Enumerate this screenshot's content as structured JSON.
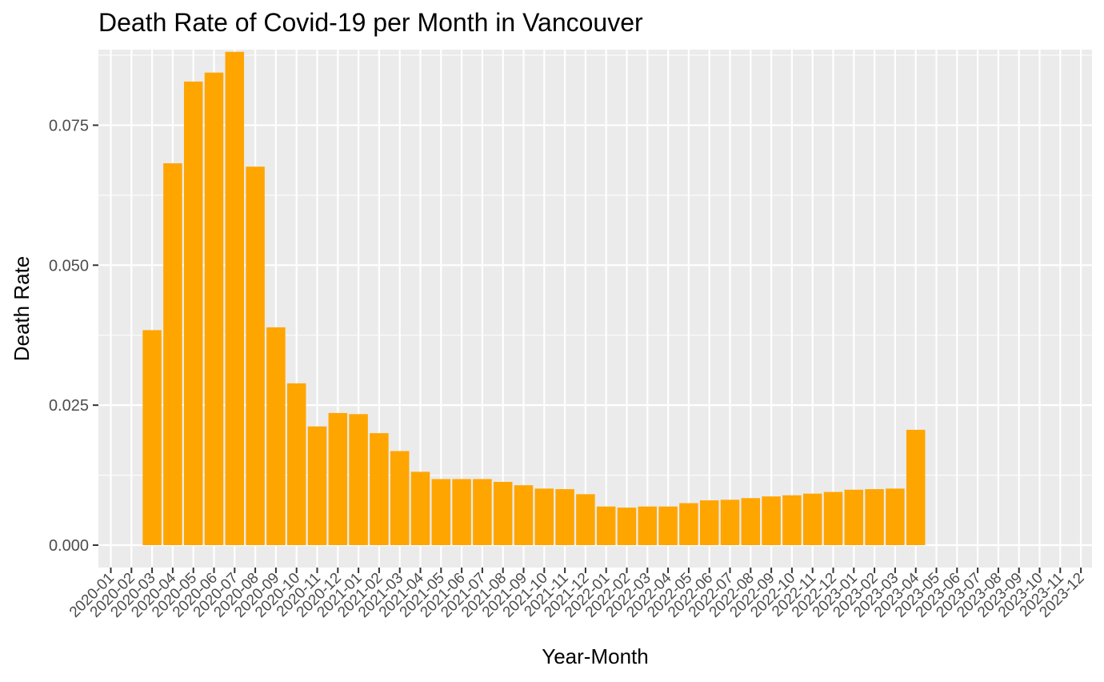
{
  "chart_data": {
    "type": "bar",
    "title": "Death Rate of Covid-19 per Month in Vancouver",
    "xlabel": "Year-Month",
    "ylabel": "Death Rate",
    "ylim": [
      -0.004,
      0.0885
    ],
    "yticks": [
      0.0,
      0.025,
      0.05,
      0.075
    ],
    "ytick_labels": [
      "0.000",
      "0.025",
      "0.050",
      "0.075"
    ],
    "grid": true,
    "bar_color": "#FFA500",
    "panel_color": "#EBEBEB",
    "grid_color": "#FFFFFF",
    "categories": [
      "2020-01",
      "2020-02",
      "2020-03",
      "2020-04",
      "2020-05",
      "2020-06",
      "2020-07",
      "2020-08",
      "2020-09",
      "2020-10",
      "2020-11",
      "2020-12",
      "2021-01",
      "2021-02",
      "2021-03",
      "2021-04",
      "2021-05",
      "2021-06",
      "2021-07",
      "2021-08",
      "2021-09",
      "2021-10",
      "2021-11",
      "2021-12",
      "2022-01",
      "2022-02",
      "2022-03",
      "2022-04",
      "2022-05",
      "2022-06",
      "2022-07",
      "2022-08",
      "2022-09",
      "2022-10",
      "2022-11",
      "2022-12",
      "2023-01",
      "2023-02",
      "2023-03",
      "2023-04",
      "2023-05",
      "2023-06",
      "2023-07",
      "2023-08",
      "2023-09",
      "2023-10",
      "2023-11",
      "2023-12"
    ],
    "values": [
      null,
      null,
      0.0384,
      0.0682,
      0.0828,
      0.0844,
      0.0881,
      0.0676,
      0.0389,
      0.0289,
      0.0212,
      0.0236,
      0.0234,
      0.02,
      0.0168,
      0.0131,
      0.0118,
      0.0118,
      0.0118,
      0.0113,
      0.0107,
      0.0101,
      0.01,
      0.0091,
      0.0069,
      0.0067,
      0.0069,
      0.0069,
      0.0075,
      0.008,
      0.0081,
      0.0084,
      0.0087,
      0.0089,
      0.0092,
      0.0095,
      0.0099,
      0.01,
      0.0101,
      0.0206,
      null,
      null,
      null,
      null,
      null,
      null,
      null,
      null
    ]
  }
}
